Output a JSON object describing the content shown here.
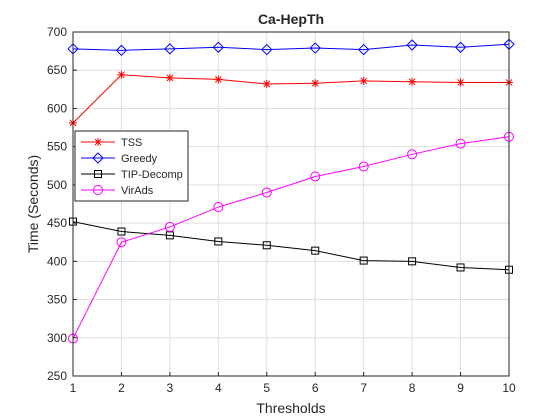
{
  "chart_data": {
    "type": "line",
    "title": "Ca-HepTh",
    "xlabel": "Thresholds",
    "ylabel": "Time (Seconds)",
    "xlim": [
      1,
      10
    ],
    "ylim": [
      250,
      700
    ],
    "x_ticks": [
      1,
      2,
      3,
      4,
      5,
      6,
      7,
      8,
      9,
      10
    ],
    "y_ticks": [
      250,
      300,
      350,
      400,
      450,
      500,
      550,
      600,
      650,
      700
    ],
    "x": [
      1,
      2,
      3,
      4,
      5,
      6,
      7,
      8,
      9,
      10
    ],
    "grid": true,
    "legend_position": "middle-left",
    "series": [
      {
        "name": "TSS",
        "color": "#ff0000",
        "marker": "asterisk",
        "values": [
          581,
          644,
          640,
          638,
          632,
          633,
          636,
          635,
          634,
          634
        ]
      },
      {
        "name": "Greedy",
        "color": "#0000ff",
        "marker": "diamond",
        "values": [
          678,
          676,
          678,
          680,
          677,
          679,
          677,
          683,
          680,
          684
        ]
      },
      {
        "name": "TIP-Decomp",
        "color": "#000000",
        "marker": "square",
        "values": [
          452,
          439,
          434,
          426,
          421,
          414,
          401,
          400,
          392,
          389
        ]
      },
      {
        "name": "VirAds",
        "color": "#ff00ff",
        "marker": "circle",
        "values": [
          299,
          425,
          445,
          471,
          490,
          511,
          524,
          540,
          554,
          563
        ]
      }
    ]
  }
}
